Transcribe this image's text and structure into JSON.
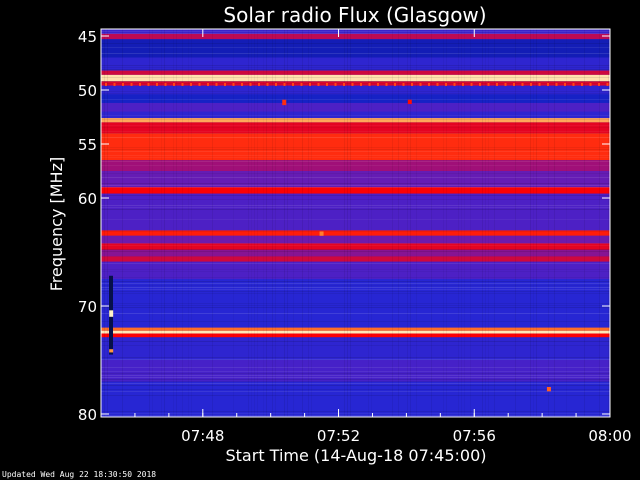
{
  "chart_data": {
    "type": "heatmap",
    "title": "Solar radio Flux (Glasgow)",
    "xlabel": "Start Time (14-Aug-18 07:45:00)",
    "ylabel": "Frequency [MHz]",
    "x_range_minutes": [
      0,
      15
    ],
    "xticks": [
      {
        "minute": 3,
        "label": "07:48"
      },
      {
        "minute": 7,
        "label": "07:52"
      },
      {
        "minute": 11,
        "label": "07:56"
      },
      {
        "minute": 15,
        "label": "08:00"
      }
    ],
    "ylim": [
      45,
      80
    ],
    "yticks": [
      45,
      50,
      55,
      60,
      70,
      80
    ],
    "y_orientation": "increasing-downward",
    "colormap": [
      "#000060",
      "#1a28d8",
      "#5a1ec0",
      "#a00f78",
      "#ff0000",
      "#ff8a30",
      "#fff4c8"
    ],
    "background_intensity": 0.25,
    "bands": [
      {
        "f_start": 44.8,
        "f_end": 45.3,
        "intensity": 0.55
      },
      {
        "f_start": 45.3,
        "f_end": 47.0,
        "intensity": 0.12
      },
      {
        "f_start": 47.0,
        "f_end": 48.2,
        "intensity": 0.22
      },
      {
        "f_start": 48.2,
        "f_end": 48.6,
        "intensity": 0.58
      },
      {
        "f_start": 48.6,
        "f_end": 49.2,
        "intensity": 0.97
      },
      {
        "f_start": 49.2,
        "f_end": 49.6,
        "intensity": 0.6
      },
      {
        "f_start": 49.6,
        "f_end": 50.4,
        "intensity": 0.22
      },
      {
        "f_start": 50.4,
        "f_end": 51.2,
        "intensity": 0.14
      },
      {
        "f_start": 51.2,
        "f_end": 52.0,
        "intensity": 0.3
      },
      {
        "f_start": 52.0,
        "f_end": 52.6,
        "intensity": 0.22
      },
      {
        "f_start": 52.6,
        "f_end": 53.0,
        "intensity": 0.88
      },
      {
        "f_start": 53.0,
        "f_end": 54.0,
        "intensity": 0.62
      },
      {
        "f_start": 54.0,
        "f_end": 56.5,
        "intensity": 0.72
      },
      {
        "f_start": 56.5,
        "f_end": 57.5,
        "intensity": 0.5
      },
      {
        "f_start": 57.5,
        "f_end": 59.0,
        "intensity": 0.36
      },
      {
        "f_start": 59.0,
        "f_end": 59.6,
        "intensity": 0.66
      },
      {
        "f_start": 59.6,
        "f_end": 63.0,
        "intensity": 0.3
      },
      {
        "f_start": 63.0,
        "f_end": 63.5,
        "intensity": 0.7
      },
      {
        "f_start": 63.5,
        "f_end": 64.2,
        "intensity": 0.38
      },
      {
        "f_start": 64.2,
        "f_end": 64.8,
        "intensity": 0.62
      },
      {
        "f_start": 64.8,
        "f_end": 65.4,
        "intensity": 0.44
      },
      {
        "f_start": 65.4,
        "f_end": 65.9,
        "intensity": 0.58
      },
      {
        "f_start": 65.9,
        "f_end": 67.5,
        "intensity": 0.3
      },
      {
        "f_start": 67.5,
        "f_end": 72.0,
        "intensity": 0.2
      },
      {
        "f_start": 72.0,
        "f_end": 72.3,
        "intensity": 0.8
      },
      {
        "f_start": 72.3,
        "f_end": 72.55,
        "intensity": 0.98
      },
      {
        "f_start": 72.55,
        "f_end": 72.9,
        "intensity": 0.66
      },
      {
        "f_start": 72.9,
        "f_end": 75.0,
        "intensity": 0.22
      },
      {
        "f_start": 75.0,
        "f_end": 77.0,
        "intensity": 0.28
      },
      {
        "f_start": 77.0,
        "f_end": 80.5,
        "intensity": 0.2
      }
    ],
    "bursts": [
      {
        "minute": 5.4,
        "f_start": 50.9,
        "f_end": 51.4,
        "intensity": 0.72
      },
      {
        "minute": 6.5,
        "f_start": 63.1,
        "f_end": 63.5,
        "intensity": 0.82
      },
      {
        "minute": 9.1,
        "f_start": 50.9,
        "f_end": 51.3,
        "intensity": 0.68
      },
      {
        "minute": 0.3,
        "f_start": 70.4,
        "f_end": 71.0,
        "intensity": 1.0
      },
      {
        "minute": 0.3,
        "f_start": 74.0,
        "f_end": 74.3,
        "intensity": 0.85
      },
      {
        "minute": 13.2,
        "f_start": 77.5,
        "f_end": 77.9,
        "intensity": 0.78
      }
    ]
  },
  "footer": {
    "updated_text": "Updated Wed Aug 22 18:30:50 2018"
  }
}
